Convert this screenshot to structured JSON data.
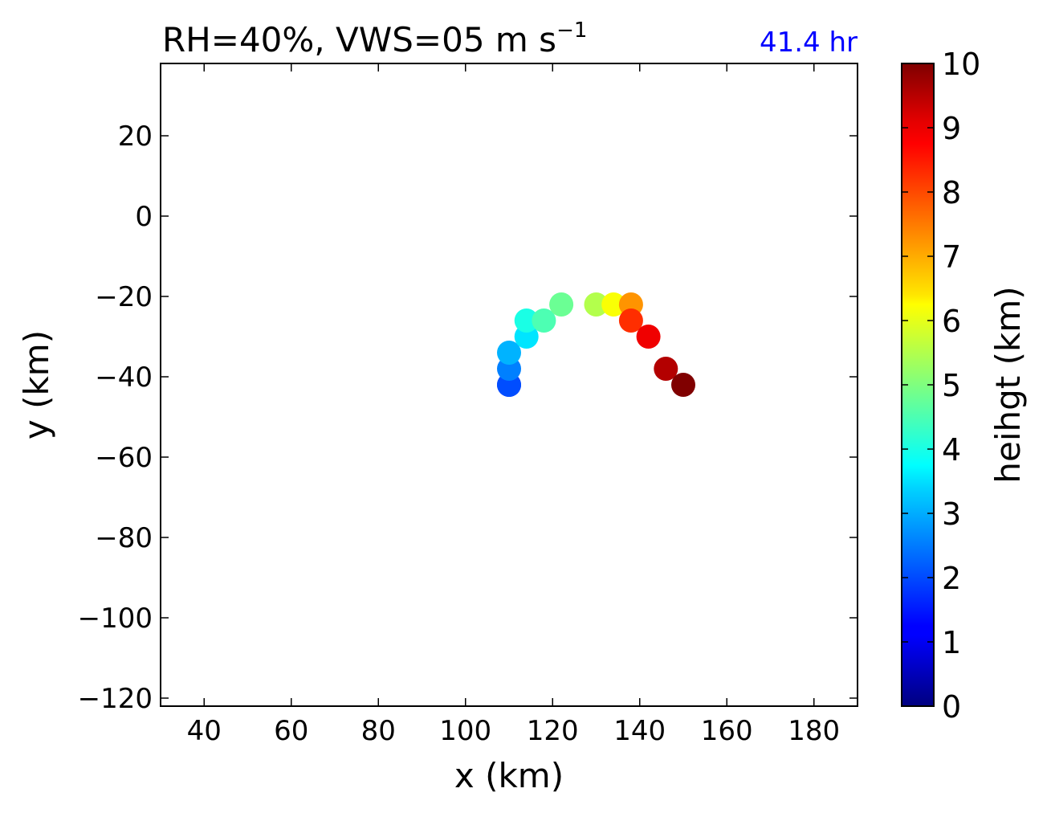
{
  "chart_data": {
    "type": "scatter",
    "title": {
      "main": "RH=40%, VWS=05 m s",
      "superscript": "−1"
    },
    "annotation": {
      "text": "41.4 hr",
      "color": "#0000ff"
    },
    "xlabel": "x (km)",
    "ylabel": "y (km)",
    "xlim": [
      30,
      190
    ],
    "ylim": [
      -122,
      38
    ],
    "xticks": [
      40,
      60,
      80,
      100,
      120,
      140,
      160,
      180
    ],
    "yticks": [
      20,
      0,
      -20,
      -40,
      -60,
      -80,
      -100,
      -120
    ],
    "grid": false,
    "colormap": "jet",
    "colorbar": {
      "label": "heihgt (km)",
      "range": [
        0,
        10
      ],
      "ticks": [
        0,
        1,
        2,
        3,
        4,
        5,
        6,
        7,
        8,
        9,
        10
      ]
    },
    "points": [
      {
        "x": 110,
        "y": -42,
        "height": 1.5
      },
      {
        "x": 110,
        "y": -42,
        "height": 2.0
      },
      {
        "x": 110,
        "y": -38,
        "height": 2.5
      },
      {
        "x": 110,
        "y": -34,
        "height": 3.0
      },
      {
        "x": 114,
        "y": -30,
        "height": 3.5
      },
      {
        "x": 114,
        "y": -26,
        "height": 4.0
      },
      {
        "x": 118,
        "y": -26,
        "height": 4.5
      },
      {
        "x": 122,
        "y": -22,
        "height": 4.8
      },
      {
        "x": 130,
        "y": -22,
        "height": 5.5
      },
      {
        "x": 134,
        "y": -22,
        "height": 6.2
      },
      {
        "x": 138,
        "y": -22,
        "height": 7.3
      },
      {
        "x": 138,
        "y": -26,
        "height": 8.3
      },
      {
        "x": 142,
        "y": -30,
        "height": 8.9
      },
      {
        "x": 146,
        "y": -38,
        "height": 9.5
      },
      {
        "x": 150,
        "y": -42,
        "height": 10.0
      }
    ]
  }
}
